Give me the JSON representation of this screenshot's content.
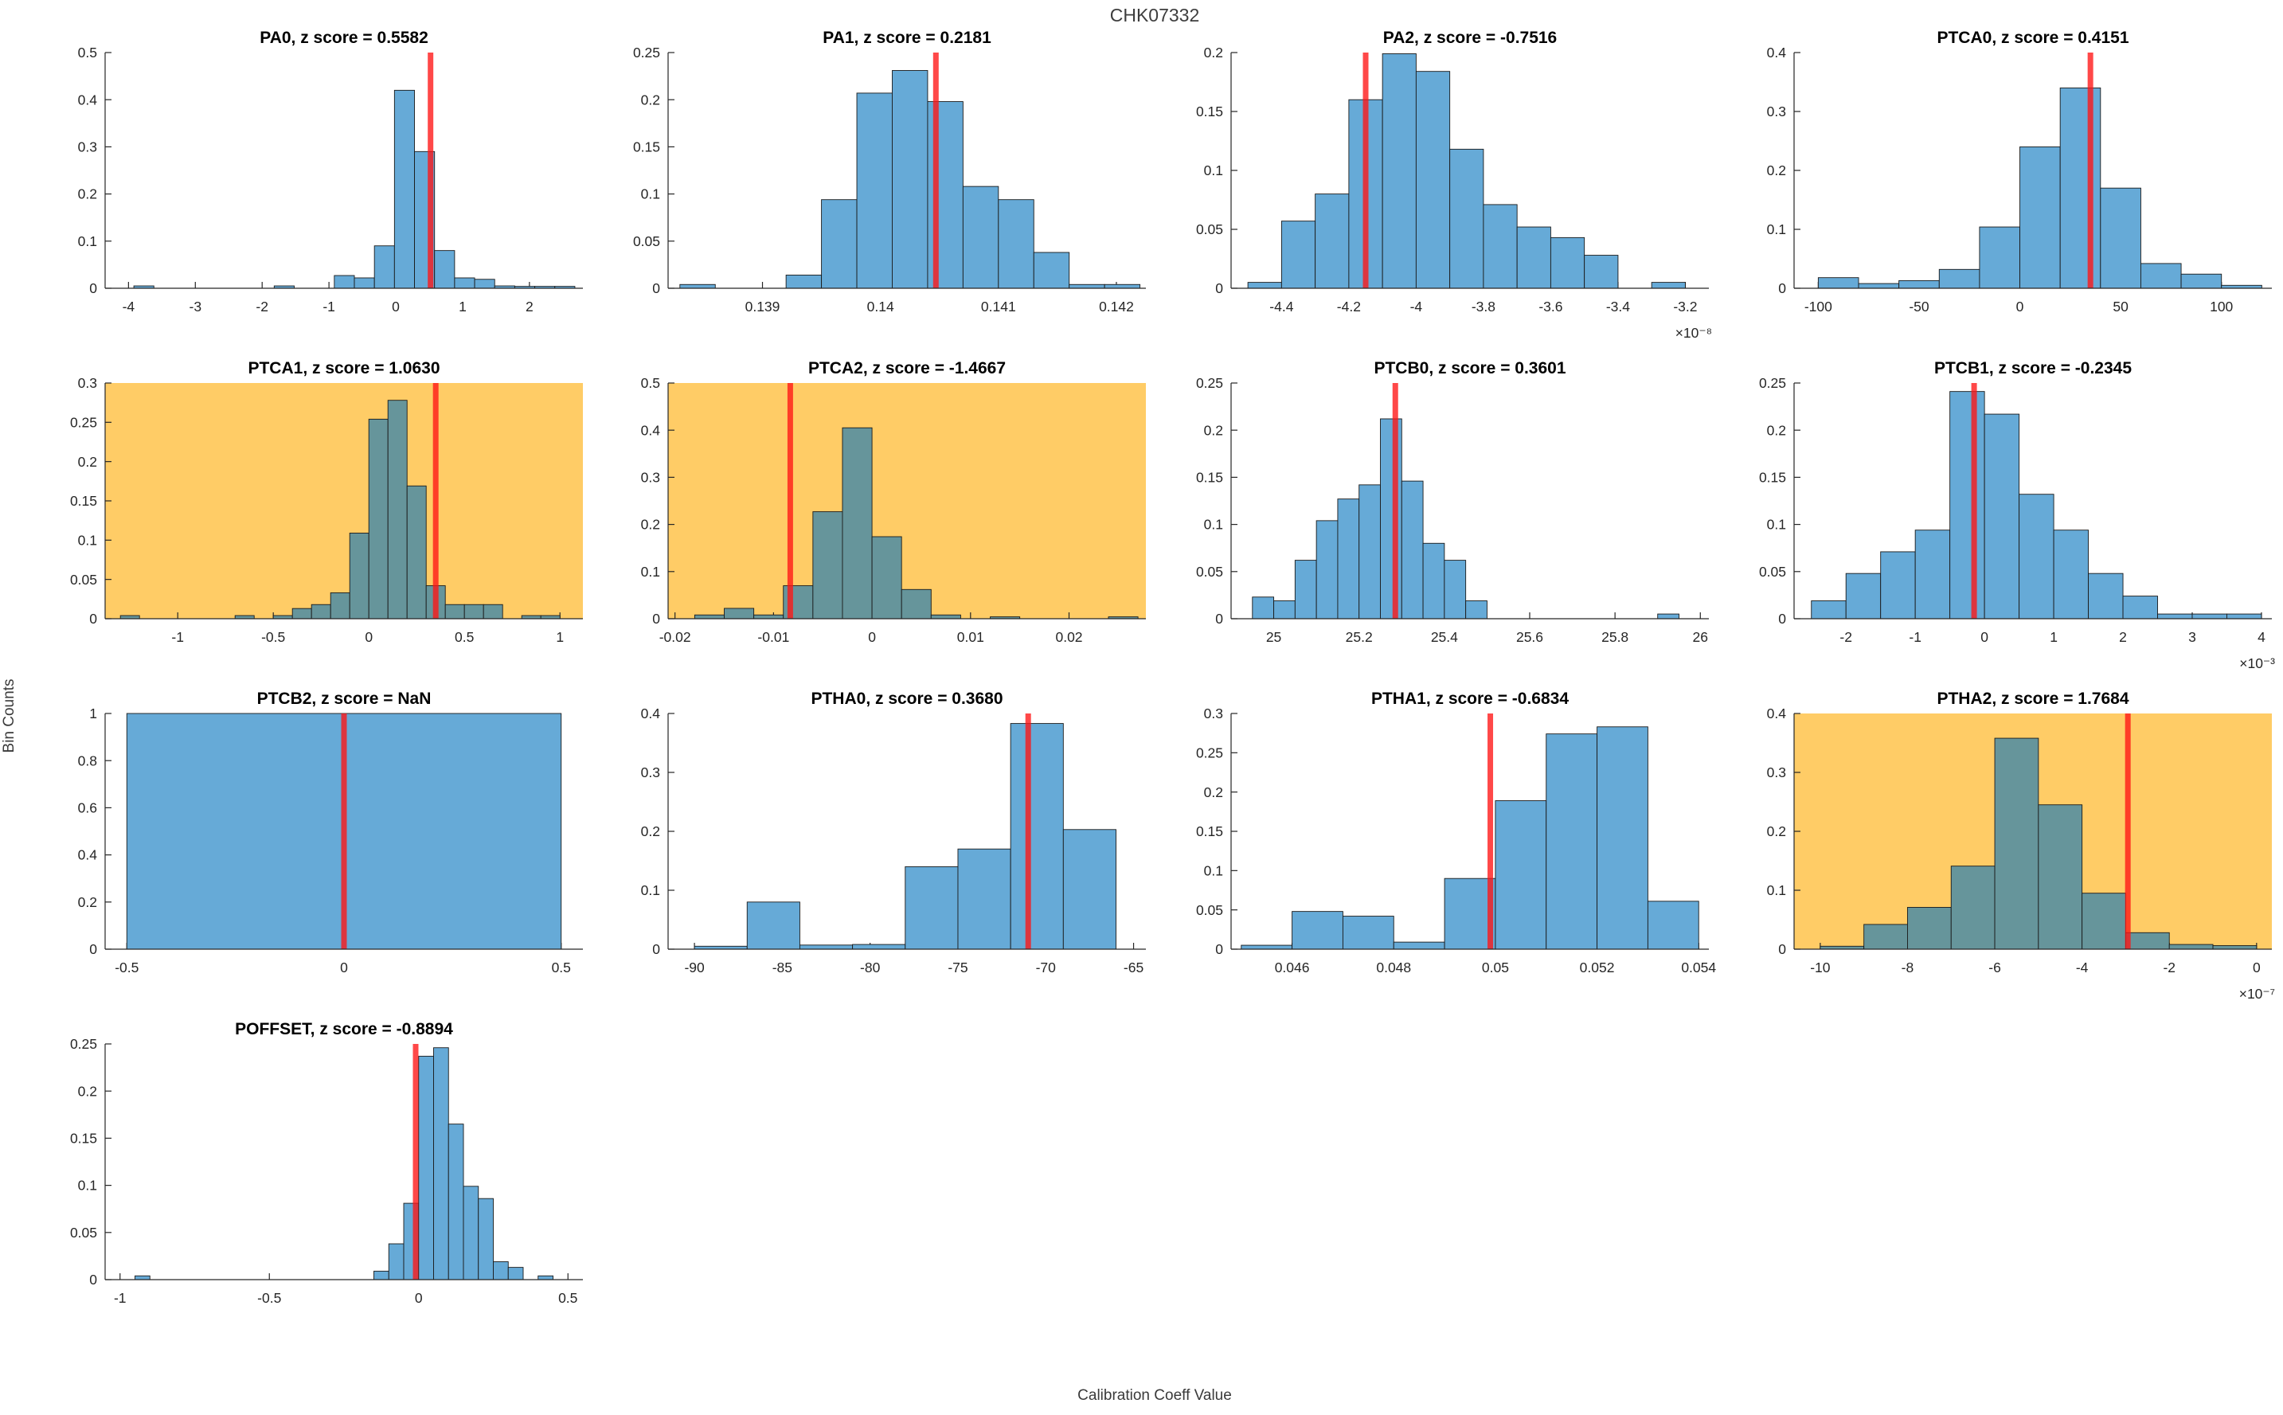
{
  "figure": {
    "title": "CHK07332",
    "ylabel": "Bin Counts",
    "xlabel": "Calibration Coeff Value"
  },
  "colors": {
    "bar_fill": "#66AAD7",
    "bar_fill_highlighted": "#66959B",
    "bar_edge": "#1a1a1a",
    "highlight_background": "#FFCC66",
    "red_line": "#ff1414",
    "axis_line": "#262626",
    "tick_text": "#262626",
    "subplot_title_text": "#000000"
  },
  "chart_data": [
    {
      "id": "PA0",
      "type": "bar",
      "title": "PA0, z score = 0.5582",
      "z_score": "0.5582",
      "highlighted": false,
      "x_multiplier": null,
      "xlim": [
        -4.35,
        2.8
      ],
      "xticks": [
        "-4",
        "-3",
        "-2",
        "-1",
        "0",
        "1",
        "2"
      ],
      "ymax": 0.5,
      "yticks": [
        "0",
        "0.1",
        "0.2",
        "0.3",
        "0.4",
        "0.5"
      ],
      "bin_width": 0.3,
      "red_x": 0.52,
      "bars": [
        [
          -3.92,
          0.005
        ],
        [
          -1.82,
          0.005
        ],
        [
          -0.92,
          0.027
        ],
        [
          -0.62,
          0.022
        ],
        [
          -0.32,
          0.09
        ],
        [
          -0.02,
          0.42
        ],
        [
          0.28,
          0.29
        ],
        [
          0.58,
          0.08
        ],
        [
          0.88,
          0.022
        ],
        [
          1.18,
          0.019
        ],
        [
          1.48,
          0.005
        ],
        [
          1.78,
          0.004
        ],
        [
          2.08,
          0.004
        ],
        [
          2.38,
          0.004
        ]
      ]
    },
    {
      "id": "PA1",
      "type": "bar",
      "title": "PA1, z score = 0.2181",
      "z_score": "0.2181",
      "highlighted": false,
      "x_multiplier": null,
      "xlim": [
        0.1382,
        0.14225
      ],
      "xticks": [
        "0.139",
        "0.14",
        "0.141",
        "0.142"
      ],
      "ymax": 0.25,
      "yticks": [
        "0",
        "0.05",
        "0.1",
        "0.15",
        "0.2",
        "0.25"
      ],
      "bin_width": 0.0003,
      "red_x": 0.14047,
      "bars": [
        [
          0.1383,
          0.004
        ],
        [
          0.1392,
          0.014
        ],
        [
          0.1395,
          0.094
        ],
        [
          0.1398,
          0.207
        ],
        [
          0.1401,
          0.231
        ],
        [
          0.1404,
          0.198
        ],
        [
          0.1407,
          0.108
        ],
        [
          0.141,
          0.094
        ],
        [
          0.1413,
          0.038
        ],
        [
          0.1416,
          0.004
        ],
        [
          0.1419,
          0.004
        ]
      ]
    },
    {
      "id": "PA2",
      "type": "bar",
      "title": "PA2, z score = -0.7516",
      "z_score": "-0.7516",
      "highlighted": false,
      "x_multiplier": "×10⁻⁸",
      "xlim": [
        -4.55,
        -3.13
      ],
      "xticks": [
        "-4.4",
        "-4.2",
        "-4",
        "-3.8",
        "-3.6",
        "-3.4",
        "-3.2"
      ],
      "ymax": 0.2,
      "yticks": [
        "0",
        "0.05",
        "0.1",
        "0.15",
        "0.2"
      ],
      "bin_width": 0.1,
      "red_x": -4.15,
      "bars": [
        [
          -4.5,
          0.005
        ],
        [
          -4.4,
          0.057
        ],
        [
          -4.3,
          0.08
        ],
        [
          -4.2,
          0.16
        ],
        [
          -4.1,
          0.199
        ],
        [
          -4.0,
          0.184
        ],
        [
          -3.9,
          0.118
        ],
        [
          -3.8,
          0.071
        ],
        [
          -3.7,
          0.052
        ],
        [
          -3.6,
          0.043
        ],
        [
          -3.5,
          0.028
        ],
        [
          -3.3,
          0.005
        ]
      ]
    },
    {
      "id": "PTCA0",
      "type": "bar",
      "title": "PTCA0, z score = 0.4151",
      "z_score": "0.4151",
      "highlighted": false,
      "x_multiplier": null,
      "xlim": [
        -112,
        125
      ],
      "xticks": [
        "-100",
        "-50",
        "0",
        "50",
        "100"
      ],
      "ymax": 0.4,
      "yticks": [
        "0",
        "0.1",
        "0.2",
        "0.3",
        "0.4"
      ],
      "bin_width": 20,
      "red_x": 35,
      "bars": [
        [
          -100,
          0.018
        ],
        [
          -80,
          0.008
        ],
        [
          -60,
          0.013
        ],
        [
          -40,
          0.032
        ],
        [
          -20,
          0.104
        ],
        [
          0,
          0.24
        ],
        [
          20,
          0.34
        ],
        [
          40,
          0.17
        ],
        [
          60,
          0.042
        ],
        [
          80,
          0.024
        ],
        [
          100,
          0.005
        ]
      ]
    },
    {
      "id": "PTCA1",
      "type": "bar",
      "title": "PTCA1, z score = 1.0630",
      "z_score": "1.0630",
      "highlighted": true,
      "x_multiplier": null,
      "xlim": [
        -1.38,
        1.12
      ],
      "xticks": [
        "-1",
        "-0.5",
        "0",
        "0.5",
        "1"
      ],
      "ymax": 0.3,
      "yticks": [
        "0",
        "0.05",
        "0.1",
        "0.15",
        "0.2",
        "0.25",
        "0.3"
      ],
      "bin_width": 0.1,
      "red_x": 0.35,
      "bars": [
        [
          -1.3,
          0.004
        ],
        [
          -0.7,
          0.004
        ],
        [
          -0.5,
          0.004
        ],
        [
          -0.4,
          0.013
        ],
        [
          -0.3,
          0.018
        ],
        [
          -0.2,
          0.033
        ],
        [
          -0.1,
          0.109
        ],
        [
          0,
          0.254
        ],
        [
          0.1,
          0.278
        ],
        [
          0.2,
          0.169
        ],
        [
          0.3,
          0.042
        ],
        [
          0.4,
          0.018
        ],
        [
          0.5,
          0.018
        ],
        [
          0.6,
          0.018
        ],
        [
          0.8,
          0.004
        ],
        [
          0.9,
          0.004
        ]
      ]
    },
    {
      "id": "PTCA2",
      "type": "bar",
      "title": "PTCA2, z score = -1.4667",
      "z_score": "-1.4667",
      "highlighted": true,
      "x_multiplier": null,
      "xlim": [
        -0.0207,
        0.0278
      ],
      "xticks": [
        "-0.02",
        "-0.01",
        "0",
        "0.01",
        "0.02"
      ],
      "ymax": 0.5,
      "yticks": [
        "0",
        "0.1",
        "0.2",
        "0.3",
        "0.4",
        "0.5"
      ],
      "bin_width": 0.003,
      "red_x": -0.0083,
      "bars": [
        [
          -0.018,
          0.008
        ],
        [
          -0.015,
          0.022
        ],
        [
          -0.012,
          0.008
        ],
        [
          -0.009,
          0.07
        ],
        [
          -0.006,
          0.227
        ],
        [
          -0.003,
          0.405
        ],
        [
          0,
          0.174
        ],
        [
          0.003,
          0.062
        ],
        [
          0.006,
          0.008
        ],
        [
          0.012,
          0.004
        ],
        [
          0.024,
          0.004
        ]
      ]
    },
    {
      "id": "PTCB0",
      "type": "bar",
      "title": "PTCB0, z score = 0.3601",
      "z_score": "0.3601",
      "highlighted": false,
      "x_multiplier": null,
      "xlim": [
        24.9,
        26.02
      ],
      "xticks": [
        "25",
        "25.2",
        "25.4",
        "25.6",
        "25.8",
        "26"
      ],
      "ymax": 0.25,
      "yticks": [
        "0",
        "0.05",
        "0.1",
        "0.15",
        "0.2",
        "0.25"
      ],
      "bin_width": 0.05,
      "red_x": 25.285,
      "bars": [
        [
          24.95,
          0.023
        ],
        [
          25.0,
          0.019
        ],
        [
          25.05,
          0.062
        ],
        [
          25.1,
          0.104
        ],
        [
          25.15,
          0.127
        ],
        [
          25.2,
          0.142
        ],
        [
          25.25,
          0.212
        ],
        [
          25.3,
          0.146
        ],
        [
          25.35,
          0.08
        ],
        [
          25.4,
          0.062
        ],
        [
          25.45,
          0.019
        ],
        [
          25.9,
          0.005
        ]
      ]
    },
    {
      "id": "PTCB1",
      "type": "bar",
      "title": "PTCB1, z score = -0.2345",
      "z_score": "-0.2345",
      "highlighted": false,
      "x_multiplier": "×10⁻³",
      "xlim": [
        -2.75,
        4.15
      ],
      "xticks": [
        "-2",
        "-1",
        "0",
        "1",
        "2",
        "3",
        "4"
      ],
      "ymax": 0.25,
      "yticks": [
        "0",
        "0.05",
        "0.1",
        "0.15",
        "0.2",
        "0.25"
      ],
      "bin_width": 0.5,
      "red_x": -0.15,
      "bars": [
        [
          -2.5,
          0.019
        ],
        [
          -2.0,
          0.048
        ],
        [
          -1.5,
          0.071
        ],
        [
          -1.0,
          0.094
        ],
        [
          -0.5,
          0.241
        ],
        [
          0,
          0.217
        ],
        [
          0.5,
          0.132
        ],
        [
          1.0,
          0.094
        ],
        [
          1.5,
          0.048
        ],
        [
          2.0,
          0.024
        ],
        [
          2.5,
          0.005
        ],
        [
          3.0,
          0.005
        ],
        [
          3.5,
          0.005
        ]
      ]
    },
    {
      "id": "PTCB2",
      "type": "bar",
      "title": "PTCB2, z score = NaN",
      "z_score": "NaN",
      "highlighted": false,
      "x_multiplier": null,
      "xlim": [
        -0.55,
        0.55
      ],
      "xticks": [
        "-0.5",
        "0",
        "0.5"
      ],
      "ymax": 1,
      "yticks": [
        "0",
        "0.2",
        "0.4",
        "0.6",
        "0.8",
        "1"
      ],
      "bin_width": 1.0,
      "red_x": 0,
      "bars": [
        [
          -0.5,
          1
        ]
      ]
    },
    {
      "id": "PTHA0",
      "type": "bar",
      "title": "PTHA0, z score = 0.3680",
      "z_score": "0.3680",
      "highlighted": false,
      "x_multiplier": null,
      "xlim": [
        -91.5,
        -64.3
      ],
      "xticks": [
        "-90",
        "-85",
        "-80",
        "-75",
        "-70",
        "-65"
      ],
      "ymax": 0.4,
      "yticks": [
        "0",
        "0.1",
        "0.2",
        "0.3",
        "0.4"
      ],
      "bin_width": 3,
      "red_x": -71,
      "bars": [
        [
          -90,
          0.005
        ],
        [
          -87,
          0.08
        ],
        [
          -84,
          0.007
        ],
        [
          -81,
          0.008
        ],
        [
          -78,
          0.14
        ],
        [
          -75,
          0.17
        ],
        [
          -72,
          0.383
        ],
        [
          -69,
          0.203
        ]
      ]
    },
    {
      "id": "PTHA1",
      "type": "bar",
      "title": "PTHA1, z score = -0.6834",
      "z_score": "-0.6834",
      "highlighted": false,
      "x_multiplier": null,
      "xlim": [
        0.0448,
        0.0542
      ],
      "xticks": [
        "0.046",
        "0.048",
        "0.05",
        "0.052",
        "0.054"
      ],
      "ymax": 0.3,
      "yticks": [
        "0",
        "0.05",
        "0.1",
        "0.15",
        "0.2",
        "0.25",
        "0.3"
      ],
      "bin_width": 0.001,
      "red_x": 0.0499,
      "bars": [
        [
          0.045,
          0.005
        ],
        [
          0.046,
          0.048
        ],
        [
          0.047,
          0.042
        ],
        [
          0.048,
          0.009
        ],
        [
          0.049,
          0.09
        ],
        [
          0.05,
          0.189
        ],
        [
          0.051,
          0.274
        ],
        [
          0.052,
          0.283
        ],
        [
          0.053,
          0.061
        ]
      ]
    },
    {
      "id": "PTHA2",
      "type": "bar",
      "title": "PTHA2, z score = 1.7684",
      "z_score": "1.7684",
      "highlighted": true,
      "x_multiplier": "×10⁻⁷",
      "xlim": [
        -10.6,
        0.35
      ],
      "xticks": [
        "-10",
        "-8",
        "-6",
        "-4",
        "-2",
        "0"
      ],
      "ymax": 0.4,
      "yticks": [
        "0",
        "0.1",
        "0.2",
        "0.3",
        "0.4"
      ],
      "bin_width": 1,
      "red_x": -2.95,
      "bars": [
        [
          -10,
          0.005
        ],
        [
          -9,
          0.042
        ],
        [
          -8,
          0.071
        ],
        [
          -7,
          0.141
        ],
        [
          -6,
          0.358
        ],
        [
          -5,
          0.245
        ],
        [
          -4,
          0.095
        ],
        [
          -3,
          0.028
        ],
        [
          -2,
          0.008
        ],
        [
          -1,
          0.006
        ]
      ]
    },
    {
      "id": "POFFSET",
      "type": "bar",
      "title": "POFFSET, z score = -0.8894",
      "z_score": "-0.8894",
      "highlighted": false,
      "x_multiplier": null,
      "xlim": [
        -1.05,
        0.55
      ],
      "xticks": [
        "-1",
        "-0.5",
        "0",
        "0.5"
      ],
      "ymax": 0.25,
      "yticks": [
        "0",
        "0.05",
        "0.1",
        "0.15",
        "0.2",
        "0.25"
      ],
      "bin_width": 0.05,
      "red_x": -0.01,
      "bars": [
        [
          -0.95,
          0.004
        ],
        [
          -0.15,
          0.009
        ],
        [
          -0.1,
          0.038
        ],
        [
          -0.05,
          0.081
        ],
        [
          0,
          0.237
        ],
        [
          0.05,
          0.246
        ],
        [
          0.1,
          0.165
        ],
        [
          0.15,
          0.099
        ],
        [
          0.2,
          0.086
        ],
        [
          0.25,
          0.019
        ],
        [
          0.3,
          0.013
        ],
        [
          0.4,
          0.004
        ]
      ]
    }
  ]
}
